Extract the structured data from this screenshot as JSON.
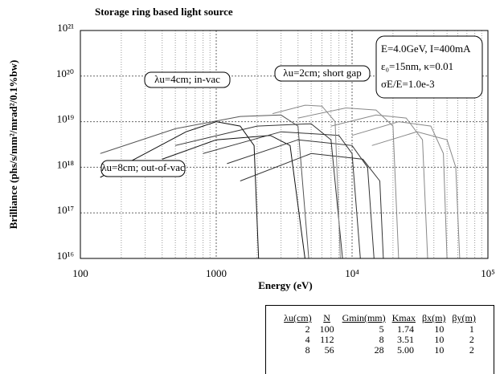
{
  "chart_data": {
    "type": "line",
    "title": "Storage ring based light source",
    "xlabel": "Energy (eV)",
    "ylabel": "Brilliance (phs/s/mm²/mrad²/0.1%bw)",
    "xscale": "log",
    "yscale": "log",
    "xlim": [
      100,
      100000
    ],
    "ylim": [
      1e+16,
      1e+21
    ],
    "xticks": [
      100,
      1000,
      {
        "value": 10000,
        "label": "10⁴"
      },
      {
        "value": 100000,
        "label": "10⁵"
      }
    ],
    "yticks": [
      {
        "value": 1e+16,
        "label": "10¹⁶"
      },
      {
        "value": 1e+17,
        "label": "10¹⁷"
      },
      {
        "value": 1e+18,
        "label": "10¹⁸"
      },
      {
        "value": 1e+19,
        "label": "10¹⁹"
      },
      {
        "value": 1e+20,
        "label": "10²⁰"
      },
      {
        "value": 1e+21,
        "label": "10²¹"
      }
    ],
    "grid": true,
    "annotations": [
      "λu=4cm; in-vac",
      "λu=2cm; short gap",
      "λu=8cm; out-of-vac"
    ],
    "parameters": [
      "E=4.0GeV, I=400mA",
      "ε₀=15nm, κ=0.01",
      "σE/E=1.0e-3"
    ],
    "series": [
      {
        "color": "#111111",
        "x": [
          140,
          300,
          600,
          1000,
          1500,
          1900,
          2050
        ],
        "values": [
          6e+17,
          2e+18,
          6e+18,
          1e+19,
          8e+18,
          3e+18,
          1e+16
        ]
      },
      {
        "color": "#111111",
        "x": [
          400,
          1000,
          2500,
          3500,
          4500
        ],
        "values": [
          1.5e+18,
          4e+18,
          5e+18,
          3e+18,
          1e+16
        ]
      },
      {
        "color": "#555555",
        "x": [
          140,
          500,
          1500,
          3000,
          4000,
          4800
        ],
        "values": [
          2e+18,
          7e+18,
          1.3e+19,
          1.4e+19,
          8e+18,
          1e+16
        ]
      },
      {
        "color": "#333333",
        "x": [
          500,
          2000,
          5000,
          7000,
          8500
        ],
        "values": [
          3e+18,
          8e+18,
          9e+18,
          4e+18,
          1e+16
        ]
      },
      {
        "color": "#333333",
        "x": [
          800,
          3000,
          8000,
          10000,
          11500
        ],
        "values": [
          2e+18,
          6e+18,
          5e+18,
          2e+18,
          1e+16
        ]
      },
      {
        "color": "#333333",
        "x": [
          1200,
          4000,
          10000,
          13000,
          14500
        ],
        "values": [
          1.2e+18,
          4e+18,
          3e+18,
          1e+18,
          1e+16
        ]
      },
      {
        "color": "#333333",
        "x": [
          1500,
          5000,
          12000,
          16000,
          17000
        ],
        "values": [
          5e+17,
          2e+18,
          1.5e+18,
          5e+17,
          1e+16
        ]
      },
      {
        "color": "#888888",
        "x": [
          2600,
          4500,
          6000,
          7500,
          8200
        ],
        "values": [
          1.5e+19,
          2.3e+19,
          2.2e+19,
          1e+19,
          1e+16
        ]
      },
      {
        "color": "#888888",
        "x": [
          4000,
          9000,
          15000,
          20000,
          22000
        ],
        "values": [
          1.2e+19,
          2e+19,
          1.8e+19,
          8e+18,
          1e+16
        ]
      },
      {
        "color": "#888888",
        "x": [
          7000,
          15000,
          25000,
          33000,
          36000
        ],
        "values": [
          8e+18,
          1.4e+19,
          1.2e+19,
          4e+18,
          1e+16
        ]
      },
      {
        "color": "#888888",
        "x": [
          10000,
          22000,
          38000,
          47000,
          50000
        ],
        "values": [
          5e+18,
          1e+19,
          8e+18,
          2e+18,
          1e+16
        ]
      },
      {
        "color": "#888888",
        "x": [
          14000,
          30000,
          50000,
          58000,
          62000
        ],
        "values": [
          3e+18,
          6e+18,
          4e+18,
          1e+18,
          1e+16
        ]
      }
    ],
    "table": {
      "header": [
        "λu(cm)",
        "N",
        "Gmin(mm)",
        "Kmax",
        "βx(m)",
        "βy(m)"
      ],
      "rows": [
        [
          "2",
          "100",
          "5",
          "1.74",
          "10",
          "1"
        ],
        [
          "4",
          "112",
          "8",
          "3.51",
          "10",
          "2"
        ],
        [
          "8",
          "56",
          "28",
          "5.00",
          "10",
          "2"
        ]
      ]
    }
  }
}
